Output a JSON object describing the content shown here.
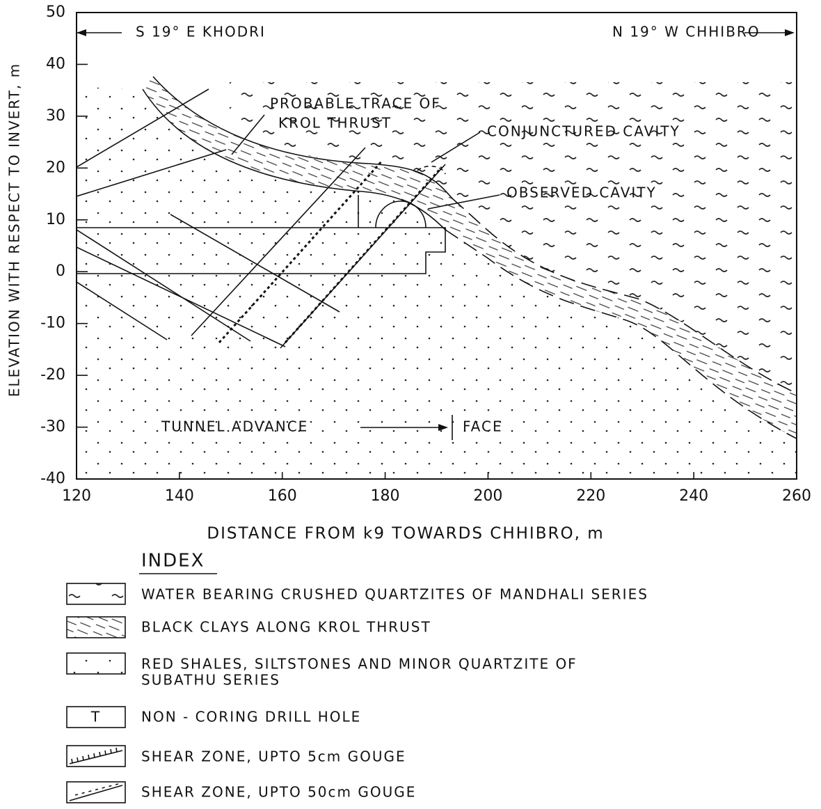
{
  "axes": {
    "xlabel": "DISTANCE FROM k9 TOWARDS CHHIBRO, m",
    "ylabel": "ELEVATION WITH RESPECT TO INVERT, m",
    "xlim": [
      120,
      260
    ],
    "ylim": [
      -40,
      50
    ],
    "xticks": [
      120,
      140,
      160,
      180,
      200,
      220,
      240,
      260
    ],
    "yticks": [
      -40,
      -30,
      -20,
      -10,
      0,
      10,
      20,
      30,
      40,
      50
    ]
  },
  "annotations": {
    "left_direction": "S 19° E KHODRI",
    "right_direction": "N 19° W CHHIBRO",
    "thrust_1": "PROBABLE TRACE OF",
    "thrust_2": "KROL THRUST",
    "conjectured": "CONJUNCTURED CAVITY",
    "observed": "OBSERVED CAVITY",
    "advance": "TUNNEL ADVANCE",
    "face": "FACE"
  },
  "index": {
    "title": "INDEX",
    "items": [
      {
        "lines": [
          "WATER BEARING CRUSHED QUARTZITES OF MANDHALI SERIES"
        ]
      },
      {
        "lines": [
          "BLACK CLAYS ALONG KROL THRUST"
        ]
      },
      {
        "lines": [
          "RED SHALES, SILTSTONES AND MINOR QUARTZITE OF",
          "SUBATHU SERIES"
        ]
      },
      {
        "symbol": "T",
        "lines": [
          "NON - CORING DRILL HOLE"
        ]
      },
      {
        "lines": [
          "SHEAR ZONE, UPTO 5cm GOUGE"
        ]
      },
      {
        "lines": [
          "SHEAR ZONE, UPTO 50cm GOUGE"
        ]
      }
    ]
  }
}
